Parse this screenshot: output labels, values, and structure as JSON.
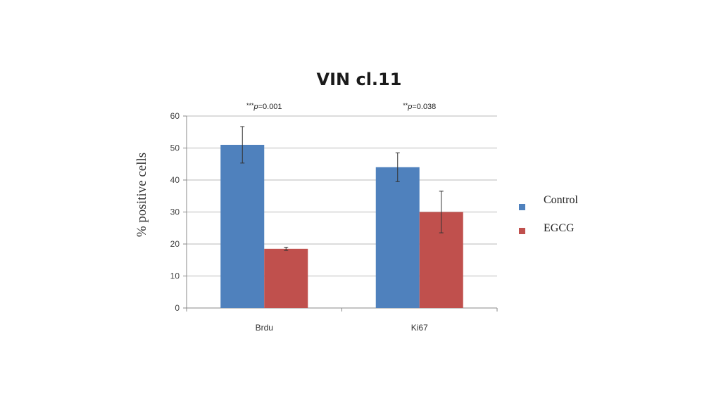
{
  "chart_data": {
    "type": "bar",
    "title": "VIN cl.11",
    "ylabel": "% positive cells",
    "xlabel": "",
    "ylim": [
      0,
      60
    ],
    "yticks": [
      "0",
      "10",
      "20",
      "30",
      "40",
      "50",
      "60"
    ],
    "categories": [
      "Brdu",
      "Ki67"
    ],
    "series": [
      {
        "name": "Control",
        "color": "#4F81BD",
        "values": [
          51,
          44
        ],
        "errors": [
          5.7,
          4.5
        ]
      },
      {
        "name": "EGCG",
        "color": "#C0504D",
        "values": [
          18.5,
          30
        ],
        "errors": [
          0.5,
          6.5
        ]
      }
    ],
    "annotations": [
      {
        "category": "Brdu",
        "stars": "***",
        "p": "p",
        "value": "=0.001"
      },
      {
        "category": "Ki67",
        "stars": "**",
        "p": "p",
        "value": "=0.038"
      }
    ],
    "grid": true,
    "legend_position": "right"
  }
}
